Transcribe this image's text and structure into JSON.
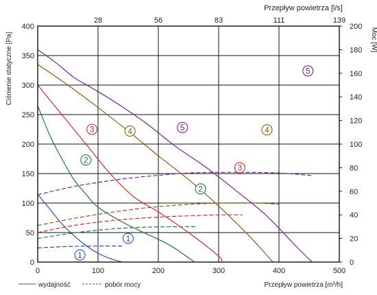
{
  "chart_data": {
    "type": "line",
    "top_axis_label": "Przepływ powietrza [l/s]",
    "bottom_axis_label": "Przepływ powietrza [m³/h]",
    "left_axis_label": "Ciśnienie statyczne [Pa]",
    "right_axis_label": "Moc [W]",
    "xlim": [
      0,
      500
    ],
    "ylim_left": [
      0,
      400
    ],
    "ylim_right": [
      0,
      200
    ],
    "x_ticks": [
      "0",
      "100",
      "200",
      "300",
      "400",
      "500"
    ],
    "x_top_ticks": [
      "28",
      "56",
      "83",
      "111",
      "139"
    ],
    "y_left_ticks": [
      "0",
      "50",
      "100",
      "150",
      "200",
      "250",
      "300",
      "350",
      "400"
    ],
    "y_right_ticks": [
      "0",
      "20",
      "40",
      "60",
      "80",
      "100",
      "120",
      "140",
      "160",
      "180",
      "200"
    ],
    "grid": true,
    "legend": {
      "solid_label": "wydajność",
      "dashed_label": "pobór mocy"
    },
    "series": [
      {
        "name": "1",
        "color": "#1f4fa8",
        "pressure_label_pos": [
          70,
          12
        ],
        "power_label_pos": [
          150,
          20
        ],
        "pressure": [
          [
            0,
            115
          ],
          [
            20,
            90
          ],
          [
            40,
            65
          ],
          [
            60,
            45
          ],
          [
            80,
            28
          ],
          [
            100,
            15
          ],
          [
            120,
            6
          ],
          [
            140,
            0
          ]
        ],
        "power": [
          [
            0,
            12
          ],
          [
            40,
            13
          ],
          [
            80,
            13.5
          ],
          [
            120,
            13.6
          ],
          [
            140,
            13.6
          ]
        ]
      },
      {
        "name": "2",
        "color": "#1b7a3a",
        "pressure_label_pos": [
          80,
          173
        ],
        "power_label_pos": [
          270,
          62
        ],
        "pressure": [
          [
            0,
            265
          ],
          [
            20,
            215
          ],
          [
            40,
            175
          ],
          [
            60,
            140
          ],
          [
            80,
            115
          ],
          [
            100,
            93
          ],
          [
            140,
            68
          ],
          [
            180,
            48
          ],
          [
            220,
            28
          ],
          [
            260,
            0
          ]
        ],
        "power": [
          [
            0,
            20
          ],
          [
            50,
            24
          ],
          [
            100,
            27
          ],
          [
            150,
            29
          ],
          [
            200,
            29.8
          ],
          [
            250,
            30
          ],
          [
            265,
            30
          ]
        ]
      },
      {
        "name": "3",
        "color": "#cc2b2b",
        "pressure_label_pos": [
          90,
          225
        ],
        "power_label_pos": [
          335,
          80
        ],
        "pressure": [
          [
            0,
            300
          ],
          [
            40,
            250
          ],
          [
            80,
            200
          ],
          [
            120,
            150
          ],
          [
            160,
            110
          ],
          [
            200,
            85
          ],
          [
            250,
            50
          ],
          [
            300,
            10
          ],
          [
            305,
            0
          ]
        ],
        "power": [
          [
            0,
            25
          ],
          [
            60,
            31
          ],
          [
            120,
            35
          ],
          [
            180,
            37.5
          ],
          [
            240,
            39
          ],
          [
            300,
            40
          ],
          [
            340,
            40
          ]
        ]
      },
      {
        "name": "4",
        "color": "#8a5a14",
        "pressure_label_pos": [
          153,
          222
        ],
        "power_label_pos": [
          380,
          112
        ],
        "pressure": [
          [
            0,
            335
          ],
          [
            50,
            300
          ],
          [
            100,
            262
          ],
          [
            150,
            222
          ],
          [
            200,
            180
          ],
          [
            250,
            140
          ],
          [
            300,
            95
          ],
          [
            350,
            45
          ],
          [
            390,
            0
          ]
        ],
        "power": [
          [
            0,
            31
          ],
          [
            60,
            37
          ],
          [
            120,
            42
          ],
          [
            180,
            46
          ],
          [
            240,
            48.5
          ],
          [
            300,
            50
          ],
          [
            360,
            50
          ],
          [
            400,
            49
          ]
        ]
      },
      {
        "name": "5",
        "color": "#7a1f9c",
        "pressure_label_pos": [
          240,
          228
        ],
        "power_label_pos": [
          448,
          162
        ],
        "pressure": [
          [
            0,
            360
          ],
          [
            30,
            338
          ],
          [
            60,
            313
          ],
          [
            90,
            295
          ],
          [
            130,
            270
          ],
          [
            180,
            235
          ],
          [
            230,
            195
          ],
          [
            280,
            160
          ],
          [
            330,
            120
          ],
          [
            380,
            78
          ],
          [
            430,
            25
          ],
          [
            455,
            0
          ]
        ],
        "power": [
          [
            0,
            57
          ],
          [
            50,
            63
          ],
          [
            100,
            67.5
          ],
          [
            150,
            71
          ],
          [
            200,
            73.5
          ],
          [
            250,
            75.5
          ],
          [
            300,
            76
          ],
          [
            350,
            76
          ],
          [
            400,
            75.5
          ],
          [
            450,
            73.5
          ],
          [
            455,
            73.5
          ]
        ]
      }
    ]
  }
}
